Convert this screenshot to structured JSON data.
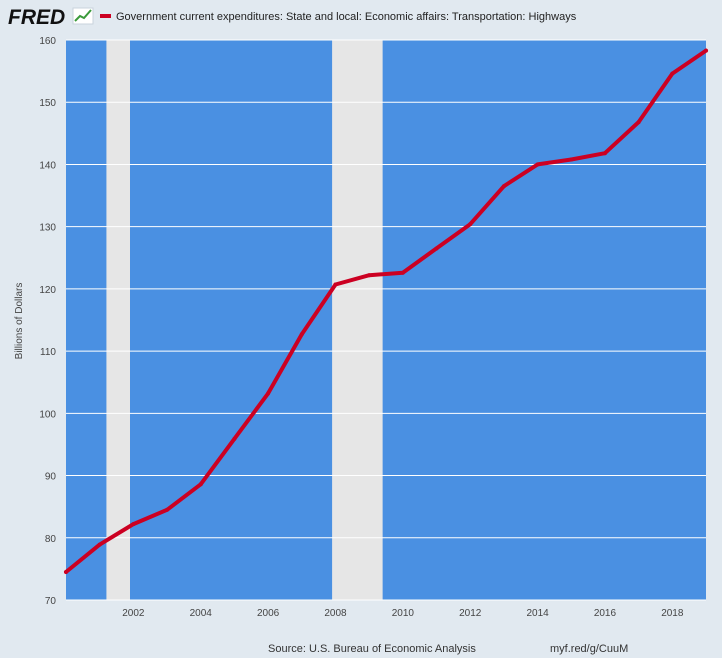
{
  "brand": {
    "logo_text": "FRED"
  },
  "colors": {
    "plot_background": "#4a90e2",
    "page_background": "#e1e9f0",
    "recession_shading": "#e6e6e6",
    "series_line": "#cc0022",
    "gridline": "#ffffff"
  },
  "footer": {
    "source": "Source: U.S. Bureau of Economic Analysis",
    "short_url": "myf.red/g/CuuM"
  },
  "chart_data": {
    "type": "line",
    "title": "",
    "xlabel": "",
    "ylabel": "Billions of Dollars",
    "xlim": [
      2000,
      2019
    ],
    "ylim": [
      70,
      160
    ],
    "grid": true,
    "legend_position": "top-left",
    "x_ticks": [
      "2002",
      "2004",
      "2006",
      "2008",
      "2010",
      "2012",
      "2014",
      "2016",
      "2018"
    ],
    "y_ticks": [
      "70",
      "80",
      "90",
      "100",
      "110",
      "120",
      "130",
      "140",
      "150",
      "160"
    ],
    "recessions": [
      {
        "start": 2001.2,
        "end": 2001.9
      },
      {
        "start": 2007.9,
        "end": 2009.4
      }
    ],
    "series": [
      {
        "name": "Government current expenditures: State and local: Economic affairs: Transportation: Highways",
        "x": [
          2000,
          2001,
          2002,
          2003,
          2004,
          2005,
          2006,
          2007,
          2008,
          2009,
          2010,
          2011,
          2012,
          2013,
          2014,
          2015,
          2016,
          2017,
          2018,
          2019
        ],
        "y": [
          74.5,
          78.9,
          82.2,
          84.5,
          88.6,
          95.9,
          103.2,
          112.7,
          120.7,
          122.2,
          122.6,
          126.5,
          130.4,
          136.5,
          140.0,
          140.8,
          141.8,
          146.8,
          154.6,
          158.3
        ]
      }
    ]
  }
}
